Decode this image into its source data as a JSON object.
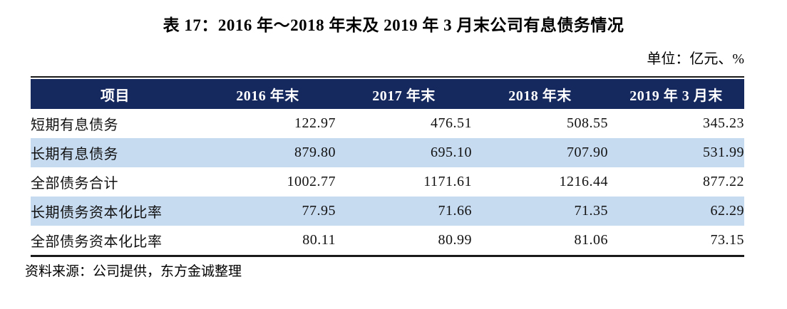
{
  "title": "表 17：2016 年～2018 年末及 2019 年 3 月末公司有息债务情况",
  "unit": "单位：亿元、%",
  "table": {
    "headers": [
      "项目",
      "2016 年末",
      "2017 年末",
      "2018 年末",
      "2019 年 3 月末"
    ],
    "rows": [
      {
        "label": "短期有息债务",
        "values": [
          "122.97",
          "476.51",
          "508.55",
          "345.23"
        ]
      },
      {
        "label": "长期有息债务",
        "values": [
          "879.80",
          "695.10",
          "707.90",
          "531.99"
        ]
      },
      {
        "label": "全部债务合计",
        "values": [
          "1002.77",
          "1171.61",
          "1216.44",
          "877.22"
        ]
      },
      {
        "label": "长期债务资本化比率",
        "values": [
          "77.95",
          "71.66",
          "71.35",
          "62.29"
        ]
      },
      {
        "label": "全部债务资本化比率",
        "values": [
          "80.11",
          "80.99",
          "81.06",
          "73.15"
        ]
      }
    ]
  },
  "source": "资料来源：公司提供，东方金诚整理",
  "colors": {
    "header_bg": "#16295F",
    "header_text": "#FFFFFF",
    "row_alt_bg": "#C7DBF0",
    "border": "#1A1A1A"
  }
}
